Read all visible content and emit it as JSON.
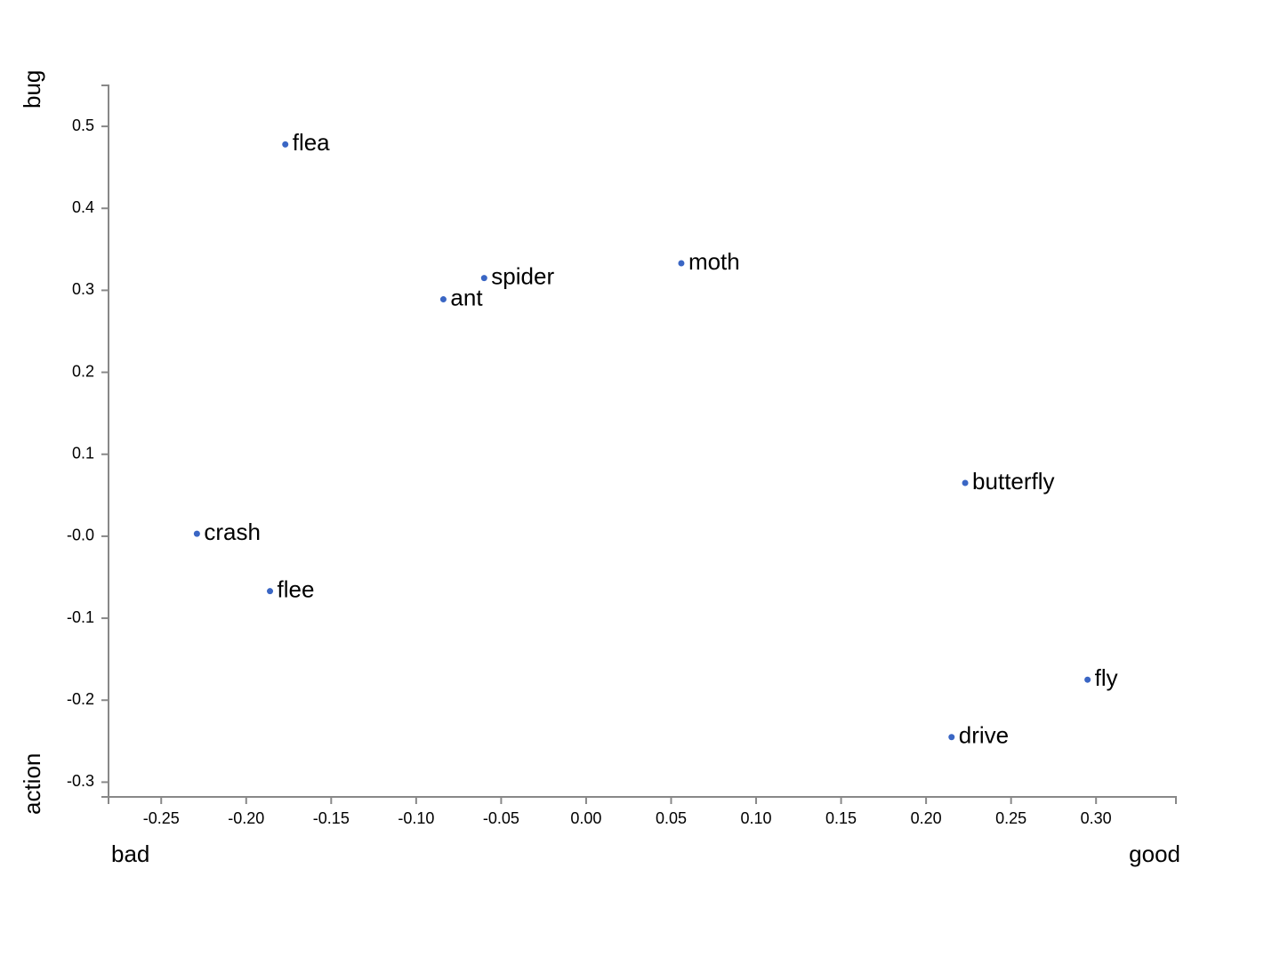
{
  "chart_data": {
    "type": "scatter",
    "labels": [
      "flea",
      "spider",
      "ant",
      "moth",
      "butterfly",
      "crash",
      "flee",
      "fly",
      "drive"
    ],
    "x": [
      -0.177,
      -0.06,
      -0.084,
      0.056,
      0.223,
      -0.229,
      -0.186,
      0.295,
      0.215
    ],
    "values": [
      0.478,
      0.315,
      0.289,
      0.333,
      0.065,
      0.003,
      -0.067,
      -0.175,
      -0.245
    ],
    "color": "#3a66c4",
    "x_label_low": "bad",
    "x_label_high": "good",
    "y_label_low": "action",
    "y_label_high": "bug",
    "xlim": [
      -0.281,
      0.347
    ],
    "xticks": [
      -0.25,
      {
        "value": -0.2,
        "label": "-0.20"
      },
      -0.15,
      {
        "value": -0.1,
        "label": "-0.10"
      },
      -0.05,
      {
        "value": 0,
        "label": "0.00"
      },
      0.05,
      {
        "value": 0.1,
        "label": "0.10"
      },
      0.15,
      {
        "value": 0.2,
        "label": "0.20"
      },
      0.25,
      {
        "value": 0.3,
        "label": "0.30"
      }
    ],
    "ylim": [
      -0.318,
      0.55
    ],
    "yticks": [
      0.5,
      0.4,
      0.3,
      0.2,
      0.1,
      {
        "value": 0,
        "label": "-0.0"
      },
      -0.1,
      -0.2,
      -0.3
    ]
  }
}
